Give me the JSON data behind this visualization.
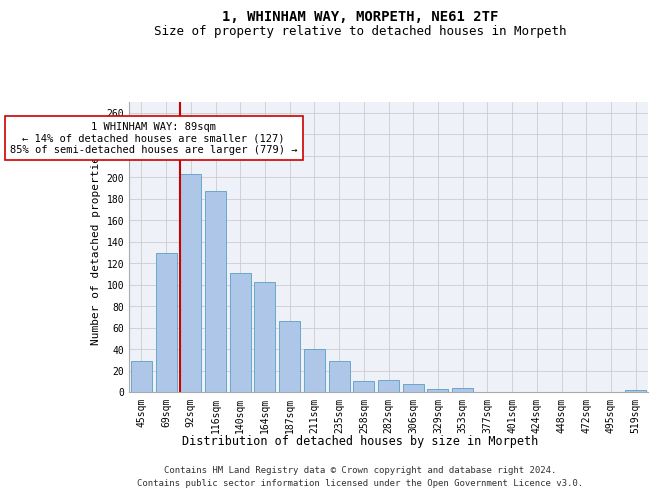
{
  "title": "1, WHINHAM WAY, MORPETH, NE61 2TF",
  "subtitle": "Size of property relative to detached houses in Morpeth",
  "xlabel": "Distribution of detached houses by size in Morpeth",
  "ylabel": "Number of detached properties",
  "categories": [
    "45sqm",
    "69sqm",
    "92sqm",
    "116sqm",
    "140sqm",
    "164sqm",
    "187sqm",
    "211sqm",
    "235sqm",
    "258sqm",
    "282sqm",
    "306sqm",
    "329sqm",
    "353sqm",
    "377sqm",
    "401sqm",
    "424sqm",
    "448sqm",
    "472sqm",
    "495sqm",
    "519sqm"
  ],
  "values": [
    29,
    129,
    203,
    187,
    111,
    102,
    66,
    40,
    29,
    10,
    11,
    7,
    3,
    4,
    0,
    0,
    0,
    0,
    0,
    0,
    2
  ],
  "bar_color": "#aec6e8",
  "bar_edge_color": "#5a9fc2",
  "vline_color": "#cc0000",
  "annotation_text": "1 WHINHAM WAY: 89sqm\n← 14% of detached houses are smaller (127)\n85% of semi-detached houses are larger (779) →",
  "annotation_box_color": "#ffffff",
  "annotation_box_edge": "#cc0000",
  "annotation_fontsize": 7.5,
  "ylim": [
    0,
    270
  ],
  "yticks": [
    0,
    20,
    40,
    60,
    80,
    100,
    120,
    140,
    160,
    180,
    200,
    220,
    240,
    260
  ],
  "grid_color": "#cccccc",
  "background_color": "#eef2f8",
  "title_fontsize": 10,
  "subtitle_fontsize": 9,
  "xlabel_fontsize": 8.5,
  "ylabel_fontsize": 8,
  "tick_fontsize": 7,
  "footer_line1": "Contains HM Land Registry data © Crown copyright and database right 2024.",
  "footer_line2": "Contains public sector information licensed under the Open Government Licence v3.0.",
  "footer_fontsize": 6.5
}
